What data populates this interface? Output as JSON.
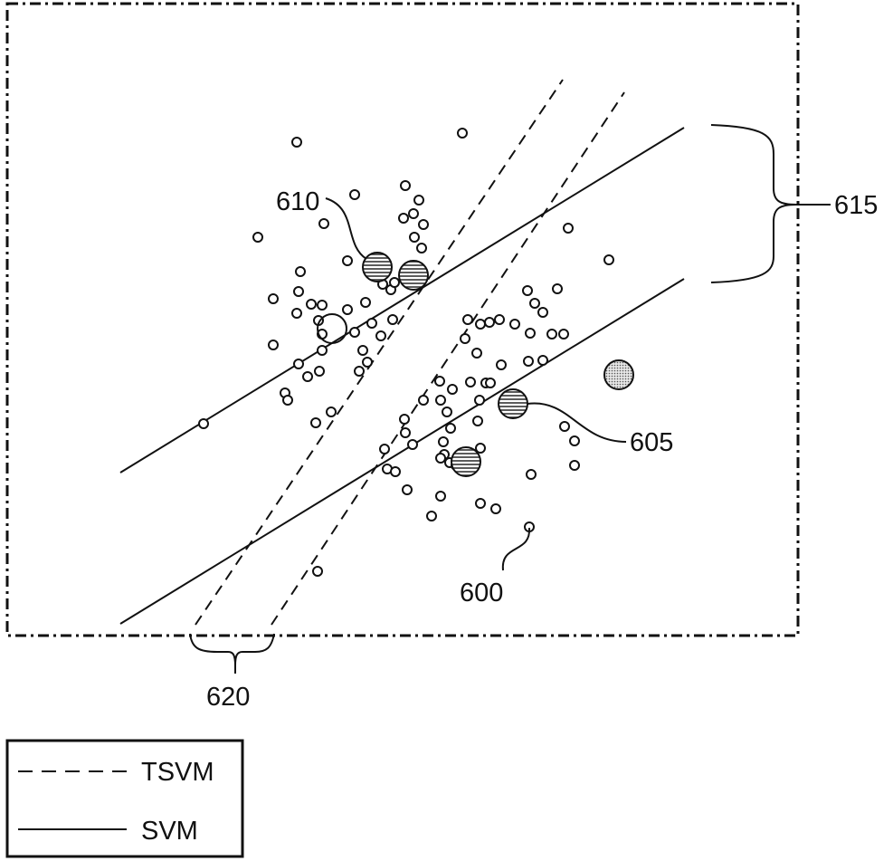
{
  "labels": {
    "ref_600": "600",
    "ref_605": "605",
    "ref_610": "610",
    "ref_615": "615",
    "ref_620": "620"
  },
  "legend": {
    "tsvm": "TSVM",
    "svm": "SVM"
  },
  "colors": {
    "ink": "#111111",
    "background": "#ffffff"
  }
}
